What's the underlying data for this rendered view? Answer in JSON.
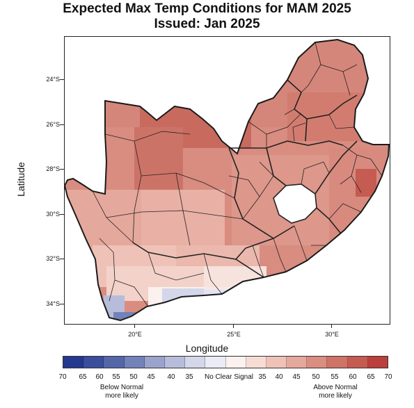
{
  "title": {
    "line1": "Expected Max Temp Conditions for MAM 2025",
    "line2": "Issued: Jan 2025"
  },
  "axes": {
    "xlabel": "Longitude",
    "ylabel": "Latitude",
    "y_ticks": [
      "24°S",
      "26°S",
      "28°S",
      "30°S",
      "32°S",
      "34°S"
    ],
    "x_ticks": [
      "20°E",
      "25°E",
      "30°E"
    ]
  },
  "legend": {
    "tick_labels": [
      "70",
      "65",
      "60",
      "55",
      "50",
      "45",
      "40",
      "35",
      "No Clear Signal",
      "35",
      "40",
      "45",
      "50",
      "55",
      "60",
      "65",
      "70"
    ],
    "below_label_line1": "Below Normal",
    "below_label_line2": "more likely",
    "above_label_line1": "Above Normal",
    "above_label_line2": "more likely",
    "colors": [
      "#25398f",
      "#3a4e9c",
      "#5566a8",
      "#7382b8",
      "#9aa3cb",
      "#b8bcdb",
      "#d4d6ea",
      "#ebebf5",
      "#fbf1ef",
      "#f7dcd6",
      "#efc2b8",
      "#e5a89c",
      "#da8d80",
      "#cf7367",
      "#c65b52",
      "#bb3f3c"
    ]
  },
  "map": {
    "region": "South Africa",
    "lon_range": [
      16.5,
      33
    ],
    "lat_range": [
      -35,
      -22
    ],
    "shading_summary": "Mostly Above Normal more likely (40-55) across the interior and north; No Clear Signal along parts of the south coast; Below Normal (40-50) at the south-western tip"
  }
}
